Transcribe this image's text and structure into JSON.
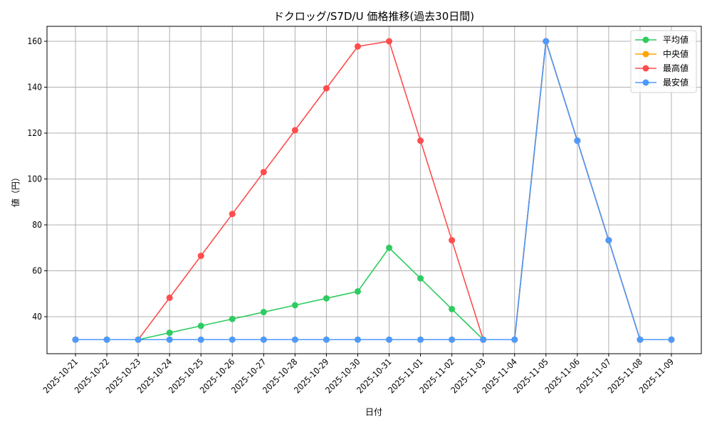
{
  "chart_data": {
    "type": "line",
    "title": "ドクロッグ/S7D/U 価格推移(過去30日間)",
    "xlabel": "日付",
    "ylabel": "値（円）",
    "ylim": [
      23,
      166
    ],
    "yticks": [
      40,
      60,
      80,
      100,
      120,
      140,
      160
    ],
    "grid": true,
    "legend_position": "upper right",
    "categories": [
      "2025-10-21",
      "2025-10-22",
      "2025-10-23",
      "2025-10-24",
      "2025-10-25",
      "2025-10-26",
      "2025-10-27",
      "2025-10-28",
      "2025-10-29",
      "2025-10-30",
      "2025-10-31",
      "2025-11-01",
      "2025-11-02",
      "2025-11-03",
      "2025-11-04",
      "2025-11-05",
      "2025-11-06",
      "2025-11-07",
      "2025-11-08",
      "2025-11-09"
    ],
    "series": [
      {
        "name": "平均値",
        "color": "#2ecc60",
        "values": [
          30,
          30,
          30,
          33,
          36,
          39,
          42,
          45,
          48,
          51,
          70,
          56.7,
          43.3,
          30,
          30,
          160,
          116.7,
          73.3,
          30,
          30
        ]
      },
      {
        "name": "中央値",
        "color": "#ffa500",
        "values": [
          30,
          30,
          30,
          30,
          30,
          30,
          30,
          30,
          30,
          30,
          30,
          30,
          30,
          30,
          30,
          160,
          116.7,
          73.3,
          30,
          30
        ]
      },
      {
        "name": "最高値",
        "color": "#ff4d4d",
        "values": [
          30,
          30,
          30,
          48.25,
          66.5,
          84.75,
          103,
          121.25,
          139.5,
          157.75,
          160,
          116.7,
          73.3,
          30,
          30,
          160,
          116.7,
          73.3,
          30,
          30
        ]
      },
      {
        "name": "最安値",
        "color": "#4d9aff",
        "values": [
          30,
          30,
          30,
          30,
          30,
          30,
          30,
          30,
          30,
          30,
          30,
          30,
          30,
          30,
          30,
          160,
          116.7,
          73.3,
          30,
          30
        ]
      }
    ]
  }
}
